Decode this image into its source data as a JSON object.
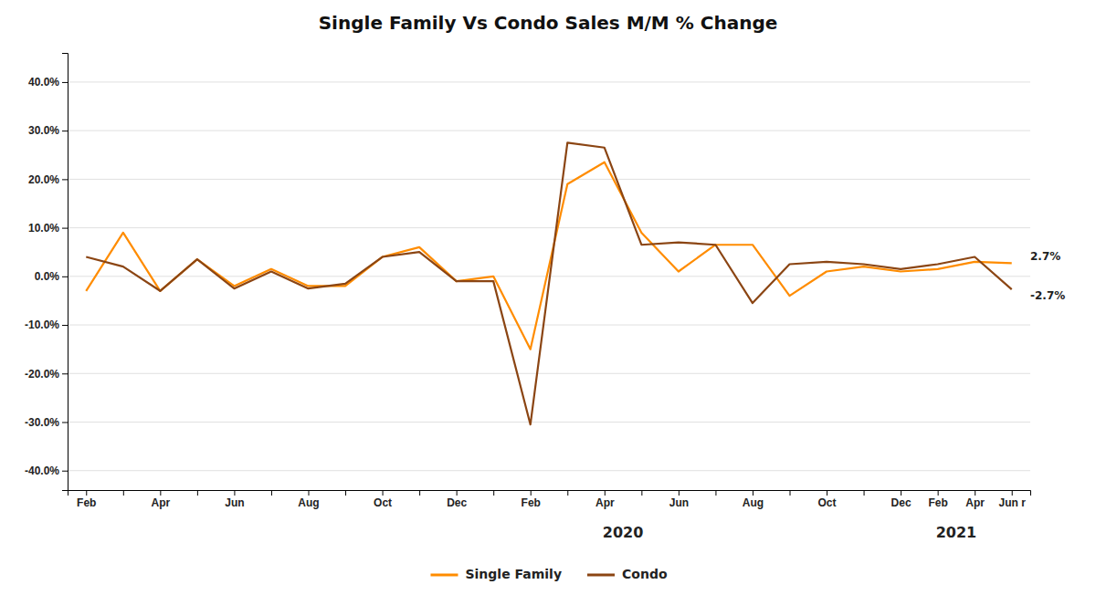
{
  "chart_data": {
    "type": "line",
    "title": "Single Family Vs Condo Sales M/M % Change",
    "categories": [
      "Feb",
      null,
      "Apr",
      null,
      "Jun",
      null,
      "Aug",
      null,
      "Oct",
      null,
      "Dec",
      null,
      "Feb",
      null,
      "Apr",
      null,
      "Jun",
      null,
      "Aug",
      null,
      "Oct",
      null,
      "Dec",
      "Feb",
      "Apr",
      "Jun r"
    ],
    "series": [
      {
        "name": "Single Family",
        "color": "#FF8C00",
        "values": [
          -0.03,
          0.09,
          -0.03,
          0.035,
          -0.02,
          0.015,
          -0.02,
          -0.02,
          0.04,
          0.06,
          -0.01,
          0.0,
          -0.15,
          0.19,
          0.235,
          0.09,
          0.01,
          0.065,
          0.065,
          -0.04,
          0.01,
          0.02,
          0.01,
          0.015,
          0.03,
          0.027
        ]
      },
      {
        "name": "Condo",
        "color": "#8B4513",
        "values": [
          0.04,
          0.02,
          -0.03,
          0.035,
          -0.025,
          0.01,
          -0.025,
          -0.015,
          0.04,
          0.05,
          -0.01,
          -0.01,
          -0.305,
          0.275,
          0.265,
          0.065,
          0.07,
          0.065,
          -0.055,
          0.025,
          0.03,
          0.025,
          0.015,
          0.025,
          0.04,
          -0.027
        ]
      }
    ],
    "ylim": [
      -0.44,
      0.46
    ],
    "yticks": [
      {
        "value": -0.4,
        "label": "-40.0%"
      },
      {
        "value": -0.3,
        "label": "-30.0%"
      },
      {
        "value": -0.2,
        "label": "-20.0%"
      },
      {
        "value": -0.1,
        "label": "-10.0%"
      },
      {
        "value": 0.0,
        "label": "0.0%"
      },
      {
        "value": 0.1,
        "label": "10.0%"
      },
      {
        "value": 0.2,
        "label": "20.0%"
      },
      {
        "value": 0.3,
        "label": "30.0%"
      },
      {
        "value": 0.4,
        "label": "40.0%"
      }
    ],
    "annotations": [
      {
        "text": "2020",
        "x": 14.5
      },
      {
        "text": "2021",
        "x": 23.5
      },
      {
        "text": "2.7%",
        "x": 25,
        "y": 0.027
      },
      {
        "text": "-2.7%",
        "x": 25,
        "y": -0.027
      }
    ],
    "grid": true,
    "legend": "bottom"
  }
}
